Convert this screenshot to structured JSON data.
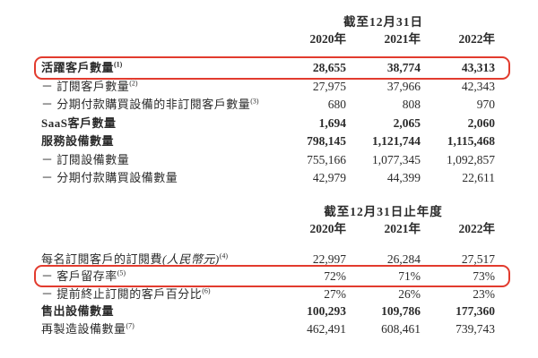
{
  "page": {
    "background": "#ffffff",
    "text_color": "#2b2b2b",
    "highlight_color": "#e23b2e"
  },
  "table1": {
    "period_header": "截至12月31日",
    "years": [
      "2020年",
      "2021年",
      "2022年"
    ],
    "rows": [
      {
        "label": "活躍客戶數量",
        "sup": "(1)",
        "bold": true,
        "highlighted": true,
        "values": [
          "28,655",
          "38,774",
          "43,313"
        ]
      },
      {
        "label": "－ 訂閱客戶數量",
        "sup": "(2)",
        "bold": false,
        "highlighted": false,
        "values": [
          "27,975",
          "37,966",
          "42,343"
        ]
      },
      {
        "label": "－ 分期付款購買設備的非訂閱客戶數量",
        "sup": "(3)",
        "bold": false,
        "highlighted": false,
        "values": [
          "680",
          "808",
          "970"
        ]
      },
      {
        "label": "SaaS客戶數量",
        "sup": "",
        "bold": true,
        "highlighted": false,
        "values": [
          "1,694",
          "2,065",
          "2,060"
        ]
      },
      {
        "label": "服務設備數量",
        "sup": "",
        "bold": true,
        "highlighted": false,
        "values": [
          "798,145",
          "1,121,744",
          "1,115,468"
        ]
      },
      {
        "label": "－ 訂閱設備數量",
        "sup": "",
        "bold": false,
        "highlighted": false,
        "values": [
          "755,166",
          "1,077,345",
          "1,092,857"
        ]
      },
      {
        "label": "－ 分期付款購買設備數量",
        "sup": "",
        "bold": false,
        "highlighted": false,
        "values": [
          "42,979",
          "44,399",
          "22,611"
        ]
      }
    ]
  },
  "table2": {
    "period_header": "截至12月31日止年度",
    "years": [
      "2020年",
      "2021年",
      "2022年"
    ],
    "rows": [
      {
        "label": "每名訂閱客戶的訂閱費",
        "label_italic": "(人民幣元)",
        "sup": "(4)",
        "bold": false,
        "highlighted": false,
        "values": [
          "22,997",
          "26,284",
          "27,517"
        ]
      },
      {
        "label": "－ 客戶留存率",
        "label_italic": "",
        "sup": "(5)",
        "bold": false,
        "highlighted": true,
        "values": [
          "72%",
          "71%",
          "73%"
        ]
      },
      {
        "label": "－ 提前終止訂閱的客戶百分比",
        "label_italic": "",
        "sup": "(6)",
        "bold": false,
        "highlighted": false,
        "values": [
          "27%",
          "26%",
          "23%"
        ]
      },
      {
        "label": "售出設備數量",
        "label_italic": "",
        "sup": "",
        "bold": true,
        "highlighted": false,
        "values": [
          "100,293",
          "109,786",
          "177,360"
        ]
      },
      {
        "label": "再製造設備數量",
        "label_italic": "",
        "sup": "(7)",
        "bold": false,
        "highlighted": false,
        "values": [
          "462,491",
          "608,461",
          "739,743"
        ]
      }
    ]
  }
}
